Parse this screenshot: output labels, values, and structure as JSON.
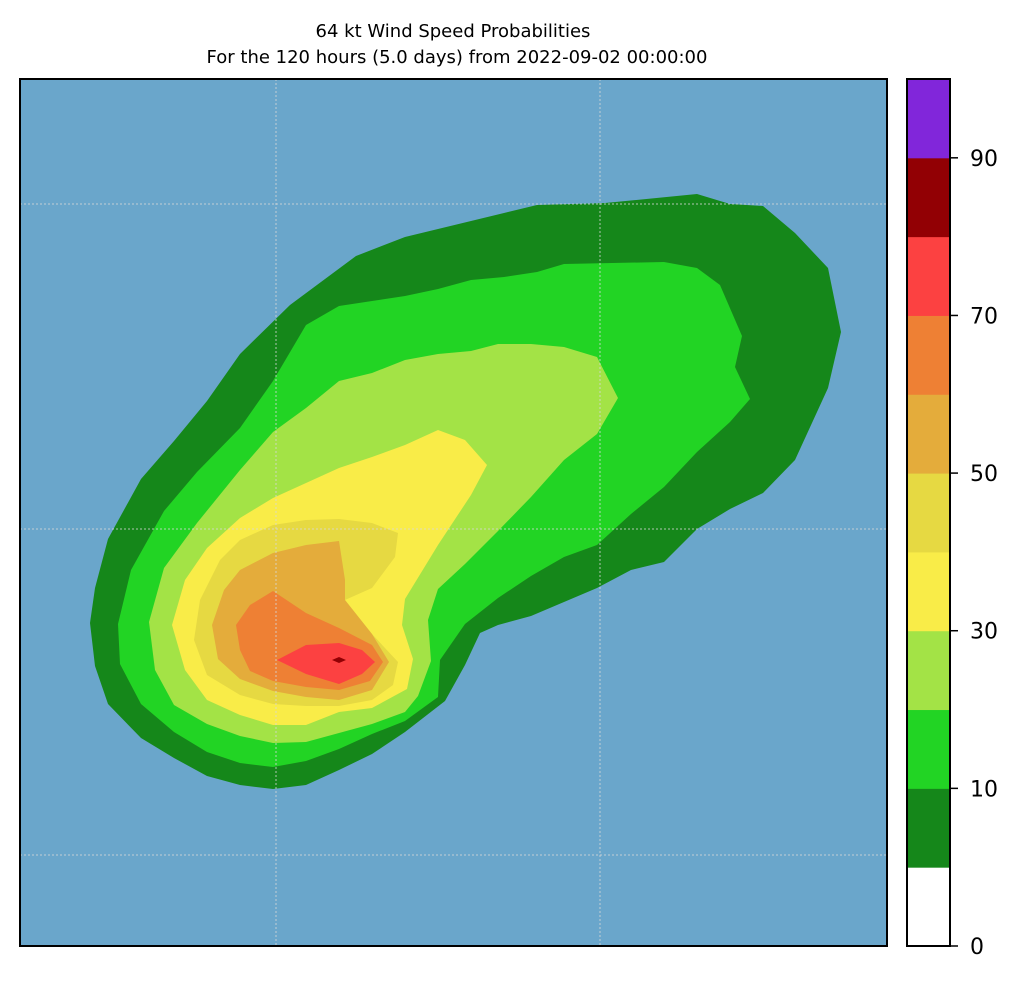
{
  "chart_data": {
    "type": "contour-map",
    "title": "64 kt Wind Speed Probabilities",
    "subtitle": "For the 120 hours (5.0 days) from 2022-09-02 00:00:00",
    "background_color": "#6aa6cb",
    "gridlines": true,
    "colorbar": {
      "range": [
        0,
        100
      ],
      "levels": [
        0,
        5,
        10,
        20,
        30,
        40,
        50,
        60,
        70,
        80,
        90,
        100
      ],
      "colors": [
        "#ffffff",
        "#15871a",
        "#22d424",
        "#a3e346",
        "#f9ec48",
        "#e6d942",
        "#e4ac3b",
        "#ee8034",
        "#fc4141",
        "#920004",
        "#8126da"
      ],
      "tick_labels": [
        "0",
        "10",
        "30",
        "50",
        "70",
        "90"
      ],
      "tick_values": [
        0,
        10,
        30,
        50,
        70,
        90
      ],
      "placement": "right"
    },
    "contours": [
      {
        "level": 5,
        "color": "#15871a"
      },
      {
        "level": 10,
        "color": "#22d424"
      },
      {
        "level": 20,
        "color": "#a3e346"
      },
      {
        "level": 30,
        "color": "#f9ec48"
      },
      {
        "level": 40,
        "color": "#e6d942"
      },
      {
        "level": 50,
        "color": "#e4ac3b"
      },
      {
        "level": 60,
        "color": "#ee8034"
      },
      {
        "level": 70,
        "color": "#fc4141"
      },
      {
        "level": 80,
        "color": "#920004"
      }
    ]
  }
}
